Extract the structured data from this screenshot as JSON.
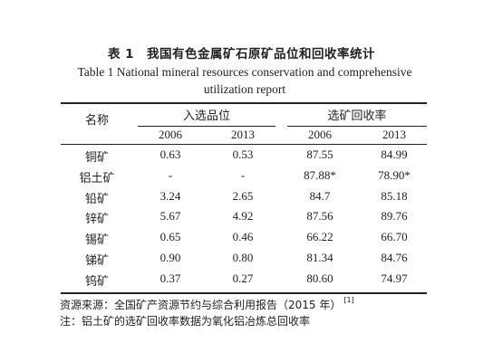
{
  "caption": {
    "table_number": "表 1",
    "title_zh": "我国有色金属矿石原矿品位和回收率统计",
    "title_en_line1": "Table 1  National mineral resources conservation and comprehensive",
    "title_en_line2": "utilization report"
  },
  "table": {
    "name_header": "名称",
    "group_headers": [
      "入选品位",
      "选矿回收率"
    ],
    "year_headers": [
      "2006",
      "2013",
      "2006",
      "2013"
    ],
    "rows": [
      {
        "name": "铜矿",
        "values": [
          "0.63",
          "0.53",
          "87.55",
          "84.99"
        ]
      },
      {
        "name": "铝土矿",
        "values": [
          "-",
          "-",
          "87.88*",
          "78.90*"
        ]
      },
      {
        "name": "铅矿",
        "values": [
          "3.24",
          "2.65",
          "84.7",
          "85.18"
        ]
      },
      {
        "name": "锌矿",
        "values": [
          "5.67",
          "4.92",
          "87.56",
          "89.76"
        ]
      },
      {
        "name": "锡矿",
        "values": [
          "0.65",
          "0.46",
          "66.22",
          "66.70"
        ]
      },
      {
        "name": "锑矿",
        "values": [
          "0.90",
          "0.80",
          "81.34",
          "84.76"
        ]
      },
      {
        "name": "钨矿",
        "values": [
          "0.37",
          "0.27",
          "80.60",
          "74.97"
        ]
      }
    ]
  },
  "footnotes": {
    "source": "资源来源：全国矿产资源节约与综合利用报告（2015 年）",
    "source_ref": "[1]",
    "note": "注：铝土矿的选矿回收率数据为氧化铝冶炼总回收率"
  }
}
